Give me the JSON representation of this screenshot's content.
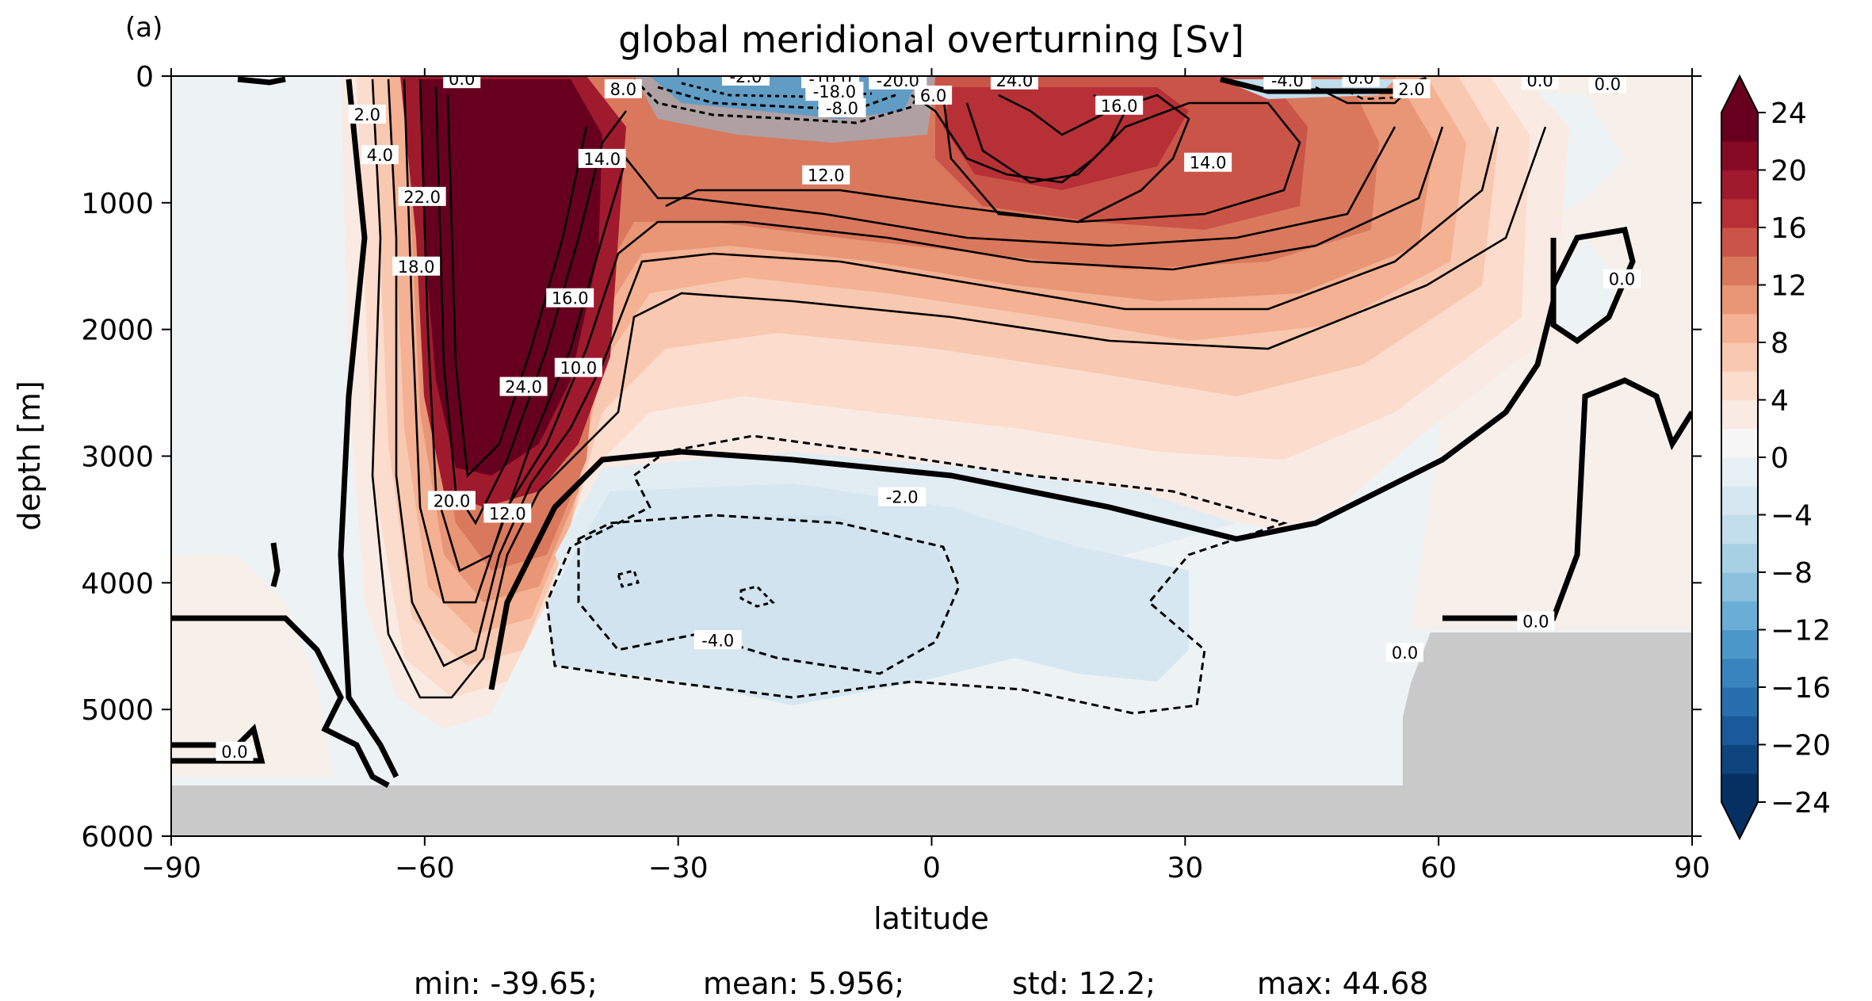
{
  "chart_data": {
    "type": "heatmap",
    "subplot_label": "(a)",
    "title": "global meridional overturning [Sv]",
    "xlabel": "latitude",
    "ylabel": "depth [m]",
    "xlim": [
      -90,
      90
    ],
    "ylim": [
      6000,
      0
    ],
    "y_inverted": true,
    "xticks": [
      -90,
      -60,
      -30,
      0,
      30,
      60,
      90
    ],
    "xtick_labels": [
      "−90",
      "−60",
      "−30",
      "0",
      "30",
      "60",
      "90"
    ],
    "yticks": [
      0,
      1000,
      2000,
      3000,
      4000,
      5000,
      6000
    ],
    "ytick_labels": [
      "0",
      "1000",
      "2000",
      "3000",
      "4000",
      "5000",
      "6000"
    ],
    "colorbar": {
      "min": -24,
      "max": 24,
      "step": 2,
      "extend": "both",
      "ticks": [
        24,
        20,
        16,
        12,
        8,
        4,
        0,
        -4,
        -8,
        -12,
        -16,
        -20,
        -24
      ],
      "tick_labels": [
        "24",
        "20",
        "16",
        "12",
        "8",
        "4",
        "0",
        "−4",
        "−8",
        "−12",
        "−16",
        "−20",
        "−24"
      ],
      "colors": [
        "#053061",
        "#0f457e",
        "#1b5a9a",
        "#286fb0",
        "#3983be",
        "#4c97c9",
        "#6aaed5",
        "#8bc1dd",
        "#a8d0e5",
        "#c2ddec",
        "#d6e7f1",
        "#e7f0f5",
        "#f7f7f7",
        "#f9ebe3",
        "#fbdccd",
        "#f8c8b0",
        "#f4b193",
        "#e89676",
        "#d9785d",
        "#ca5448",
        "#b73036",
        "#a01a2e",
        "#870a25",
        "#67001f"
      ]
    },
    "contour_labels": [
      {
        "text": "0.0",
        "lat": -55.6,
        "depth": 20
      },
      {
        "text": "2.0",
        "lat": -66.8,
        "depth": 300
      },
      {
        "text": "4.0",
        "lat": -65.3,
        "depth": 620
      },
      {
        "text": "22.0",
        "lat": -60.3,
        "depth": 950
      },
      {
        "text": "18.0",
        "lat": -61.0,
        "depth": 1500
      },
      {
        "text": "14.0",
        "lat": -39.0,
        "depth": 650
      },
      {
        "text": "16.0",
        "lat": -42.8,
        "depth": 1750
      },
      {
        "text": "10.0",
        "lat": -41.8,
        "depth": 2300
      },
      {
        "text": "24.0",
        "lat": -48.3,
        "depth": 2450
      },
      {
        "text": "20.0",
        "lat": -56.8,
        "depth": 3350
      },
      {
        "text": "12.0",
        "lat": -50.2,
        "depth": 3450
      },
      {
        "text": "8.0",
        "lat": -36.5,
        "depth": 100
      },
      {
        "text": "-2.0",
        "lat": -22.0,
        "depth": 0
      },
      {
        "text": "-1",
        "lat": -13.5,
        "depth": 10
      },
      {
        "text": "-10.0",
        "lat": -12.0,
        "depth": 20
      },
      {
        "text": "-18.0",
        "lat": -11.5,
        "depth": 120
      },
      {
        "text": "-8.0",
        "lat": -10.6,
        "depth": 250
      },
      {
        "text": "-20.0",
        "lat": -4.0,
        "depth": 30
      },
      {
        "text": "6.0",
        "lat": 0.2,
        "depth": 150
      },
      {
        "text": "24.0",
        "lat": 9.8,
        "depth": 30
      },
      {
        "text": "16.0",
        "lat": 22.2,
        "depth": 230
      },
      {
        "text": "12.0",
        "lat": -12.5,
        "depth": 780
      },
      {
        "text": "14.0",
        "lat": 32.7,
        "depth": 680
      },
      {
        "text": "-4.0",
        "lat": 42.1,
        "depth": 30
      },
      {
        "text": "0.0",
        "lat": 50.8,
        "depth": 10
      },
      {
        "text": "2.0",
        "lat": 56.8,
        "depth": 100
      },
      {
        "text": "0.0",
        "lat": 72.0,
        "depth": 30
      },
      {
        "text": "0.0",
        "lat": 80.0,
        "depth": 60
      },
      {
        "text": "0.0",
        "lat": 81.7,
        "depth": 1600
      },
      {
        "text": "-2.0",
        "lat": -3.5,
        "depth": 3320
      },
      {
        "text": "-4.0",
        "lat": -25.3,
        "depth": 4450
      },
      {
        "text": "0.0",
        "lat": 56.0,
        "depth": 4550
      },
      {
        "text": "0.0",
        "lat": 71.5,
        "depth": 4300
      },
      {
        "text": "0.0",
        "lat": -82.5,
        "depth": 5330
      }
    ],
    "stats": {
      "min": "-39.65",
      "mean": "5.956",
      "std": "12.2",
      "max": "44.68"
    }
  },
  "footer": {
    "min_text": "min: -39.65;",
    "mean_text": "mean: 5.956;",
    "std_text": "std: 12.2;",
    "max_text": "max: 44.68"
  }
}
